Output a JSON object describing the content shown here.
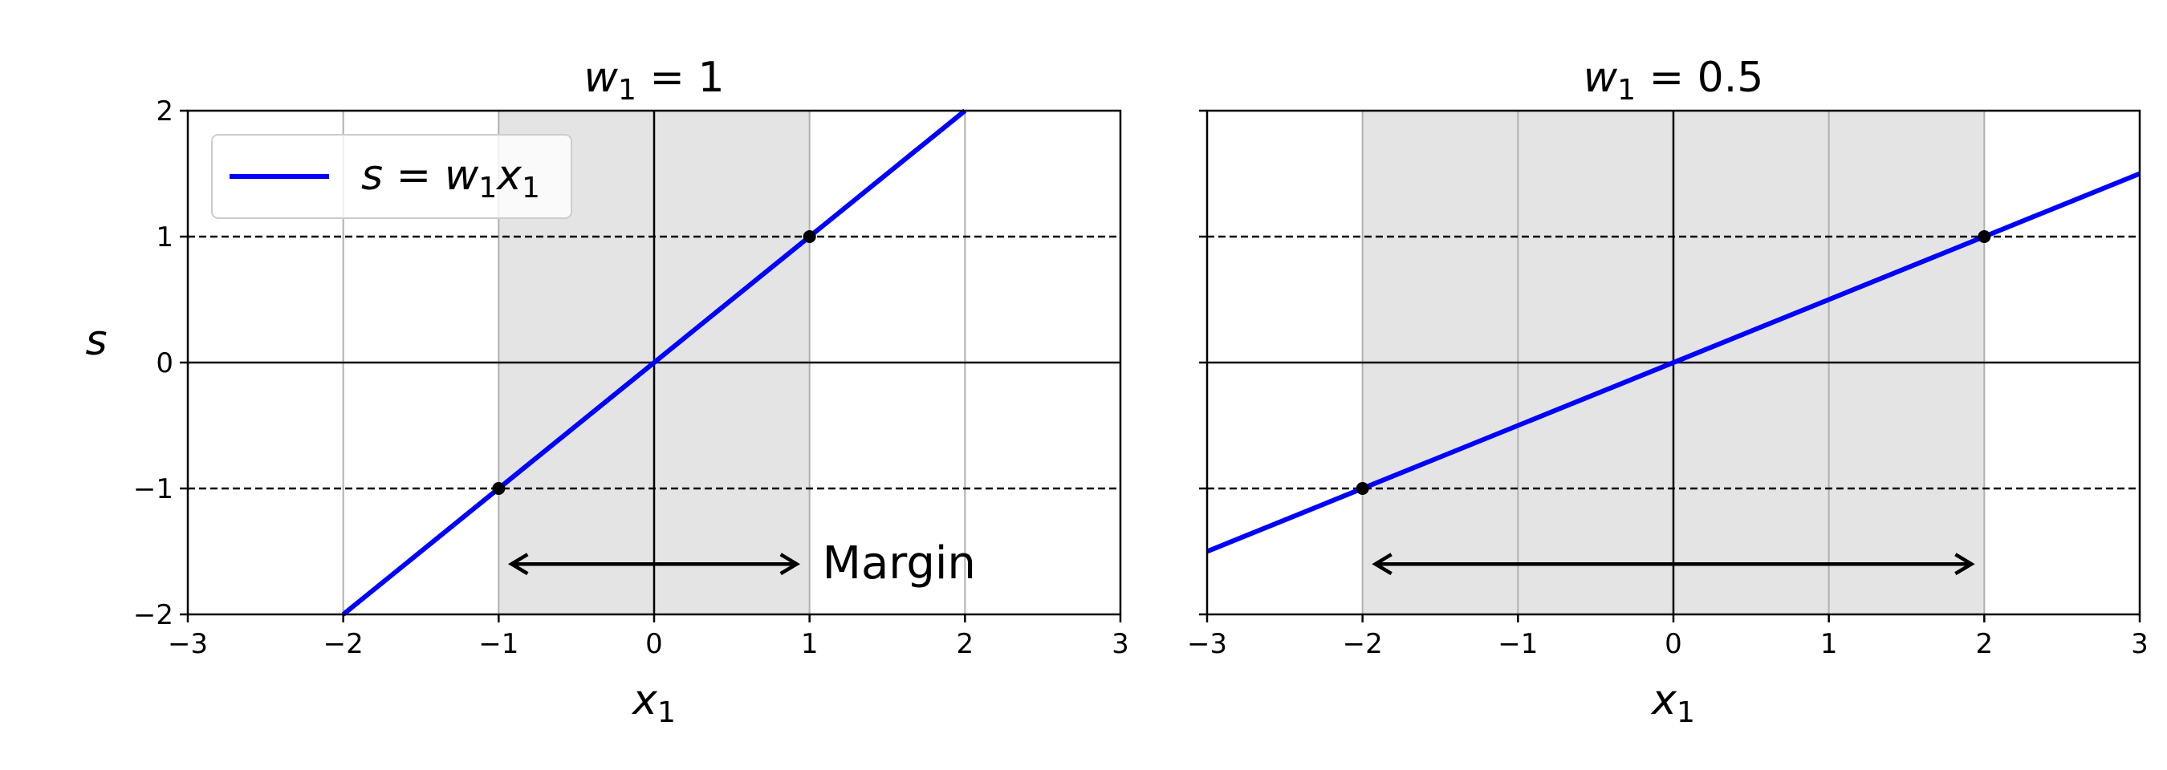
{
  "chart_data": [
    {
      "type": "line",
      "title": "w₁ = 1",
      "title_parts": {
        "var": "w",
        "sub": "1",
        "rest": " = 1"
      },
      "xlabel": "x₁",
      "xlabel_parts": {
        "var": "x",
        "sub": "1"
      },
      "ylabel": "s",
      "xlim": [
        -3,
        3
      ],
      "ylim": [
        -2,
        2
      ],
      "xticks": [
        -3,
        -2,
        -1,
        0,
        1,
        2,
        3
      ],
      "xtick_labels": [
        "−3",
        "−2",
        "−1",
        "0",
        "1",
        "2",
        "3"
      ],
      "yticks": [
        -2,
        -1,
        0,
        1,
        2
      ],
      "ytick_labels": [
        "−2",
        "−1",
        "0",
        "1",
        "2"
      ],
      "grid": "x-only",
      "series": [
        {
          "name": "s = w₁x₁",
          "color": "#0000ff",
          "x": [
            -2,
            2
          ],
          "y": [
            -2,
            2
          ]
        }
      ],
      "shaded_region": {
        "x": [
          -1,
          1
        ],
        "color": "#e4e4e4"
      },
      "dashed_lines_y": [
        1,
        -1
      ],
      "axis_lines": {
        "x": 0,
        "y": 0
      },
      "support_points": [
        {
          "x": -1,
          "y": -1
        },
        {
          "x": 1,
          "y": 1
        }
      ],
      "margin_arrow": {
        "x_from": -1,
        "x_to": 1,
        "y": -1.6
      },
      "annotation": "Margin",
      "legend": {
        "position": "upper left",
        "label": "s = w₁x₁",
        "parts": {
          "a": "s",
          "eq": " = ",
          "b": "w",
          "b_sub": "1",
          "c": "x",
          "c_sub": "1"
        }
      }
    },
    {
      "type": "line",
      "title": "w₁ = 0.5",
      "title_parts": {
        "var": "w",
        "sub": "1",
        "rest": " = 0.5"
      },
      "xlabel": "x₁",
      "xlabel_parts": {
        "var": "x",
        "sub": "1"
      },
      "xlim": [
        -3,
        3
      ],
      "ylim": [
        -2,
        2
      ],
      "xticks": [
        -3,
        -2,
        -1,
        0,
        1,
        2,
        3
      ],
      "xtick_labels": [
        "−3",
        "−2",
        "−1",
        "0",
        "1",
        "2",
        "3"
      ],
      "yticks": [
        -2,
        -1,
        0,
        1,
        2
      ],
      "grid": "x-only",
      "series": [
        {
          "color": "#0000ff",
          "x": [
            -3,
            3
          ],
          "y": [
            -1.5,
            1.5
          ]
        }
      ],
      "shaded_region": {
        "x": [
          -2,
          2
        ],
        "color": "#e4e4e4"
      },
      "dashed_lines_y": [
        1,
        -1
      ],
      "axis_lines": {
        "x": 0,
        "y": 0
      },
      "support_points": [
        {
          "x": -2,
          "y": -1
        },
        {
          "x": 2,
          "y": 1
        }
      ],
      "margin_arrow": {
        "x_from": -2,
        "x_to": 2,
        "y": -1.6
      }
    }
  ]
}
